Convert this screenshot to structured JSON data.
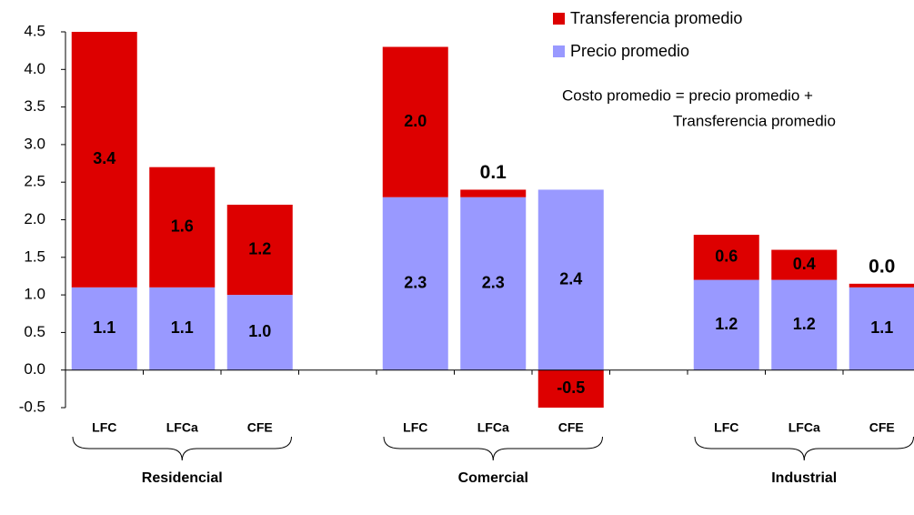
{
  "chart_data": {
    "type": "stacked-bar",
    "categories": [
      "LFC",
      "LFCa",
      "CFE",
      null,
      "LFC",
      "LFCa",
      "CFE",
      null,
      "LFC",
      "LFCa",
      "CFE"
    ],
    "groups": [
      "Residencial",
      "Comercial",
      "Industrial"
    ],
    "series": [
      {
        "name": "Precio promedio",
        "color": "#9999ff",
        "values": [
          1.1,
          1.1,
          1.0,
          null,
          2.3,
          2.3,
          2.4,
          null,
          1.2,
          1.2,
          1.1
        ],
        "value_labels": [
          "1.1",
          "1.1",
          "1.0",
          null,
          "2.3",
          "2.3",
          "2.4",
          null,
          "1.2",
          "1.2",
          "1.1"
        ]
      },
      {
        "name": "Transferencia promedio",
        "color": "#dd0000",
        "values": [
          3.4,
          1.6,
          1.2,
          null,
          2.0,
          0.1,
          -0.5,
          null,
          0.6,
          0.4,
          0.0
        ],
        "value_labels": [
          "3.4",
          "1.6",
          "1.2",
          null,
          "2.0",
          "0.1",
          "-0.5",
          null,
          "0.6",
          "0.4",
          "0.0"
        ]
      }
    ],
    "annotation": [
      "Costo promedio = precio promedio +",
      "Transferencia promedio"
    ],
    "ylim": [
      -0.5,
      4.5
    ],
    "yticks": [
      -0.5,
      {
        "value": 0,
        "label": "0.0"
      },
      0.5,
      {
        "value": 1,
        "label": "1.0"
      },
      1.5,
      {
        "value": 2,
        "label": "2.0"
      },
      2.5,
      {
        "value": 3,
        "label": "3.0"
      },
      3.5,
      {
        "value": 4,
        "label": "4.0"
      },
      4.5
    ],
    "grid": false
  }
}
